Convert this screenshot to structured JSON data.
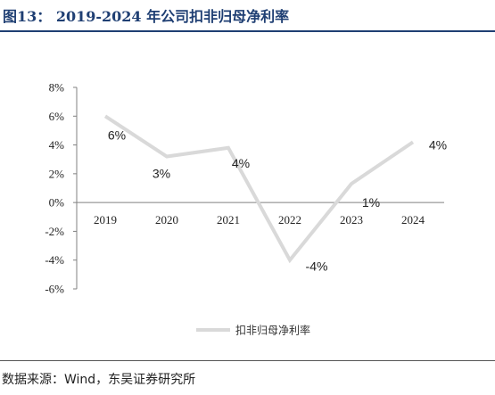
{
  "header": {
    "title": "图13：  2019-2024 年公司扣非归母净利率"
  },
  "footer": {
    "source": "数据来源：Wind，东吴证券研究所"
  },
  "chart_data": {
    "type": "line",
    "title": "",
    "xlabel": "",
    "ylabel": "",
    "categories": [
      "2019",
      "2020",
      "2021",
      "2022",
      "2023",
      "2024"
    ],
    "series": [
      {
        "name": "扣非归母净利率",
        "values": [
          6.0,
          3.2,
          3.8,
          -4.0,
          1.3,
          4.2
        ],
        "data_labels": [
          "6%",
          "3%",
          "4%",
          "-4%",
          "1%",
          "4%"
        ],
        "color": "#d9d9d9"
      }
    ],
    "ylim": [
      -6,
      8
    ],
    "yticks": [
      8,
      6,
      4,
      2,
      0,
      -2,
      -4,
      -6
    ],
    "ytick_labels": [
      "8%",
      "6%",
      "4%",
      "2%",
      "0%",
      "-2%",
      "-4%",
      "-6%"
    ],
    "grid": false,
    "legend_position": "bottom"
  }
}
